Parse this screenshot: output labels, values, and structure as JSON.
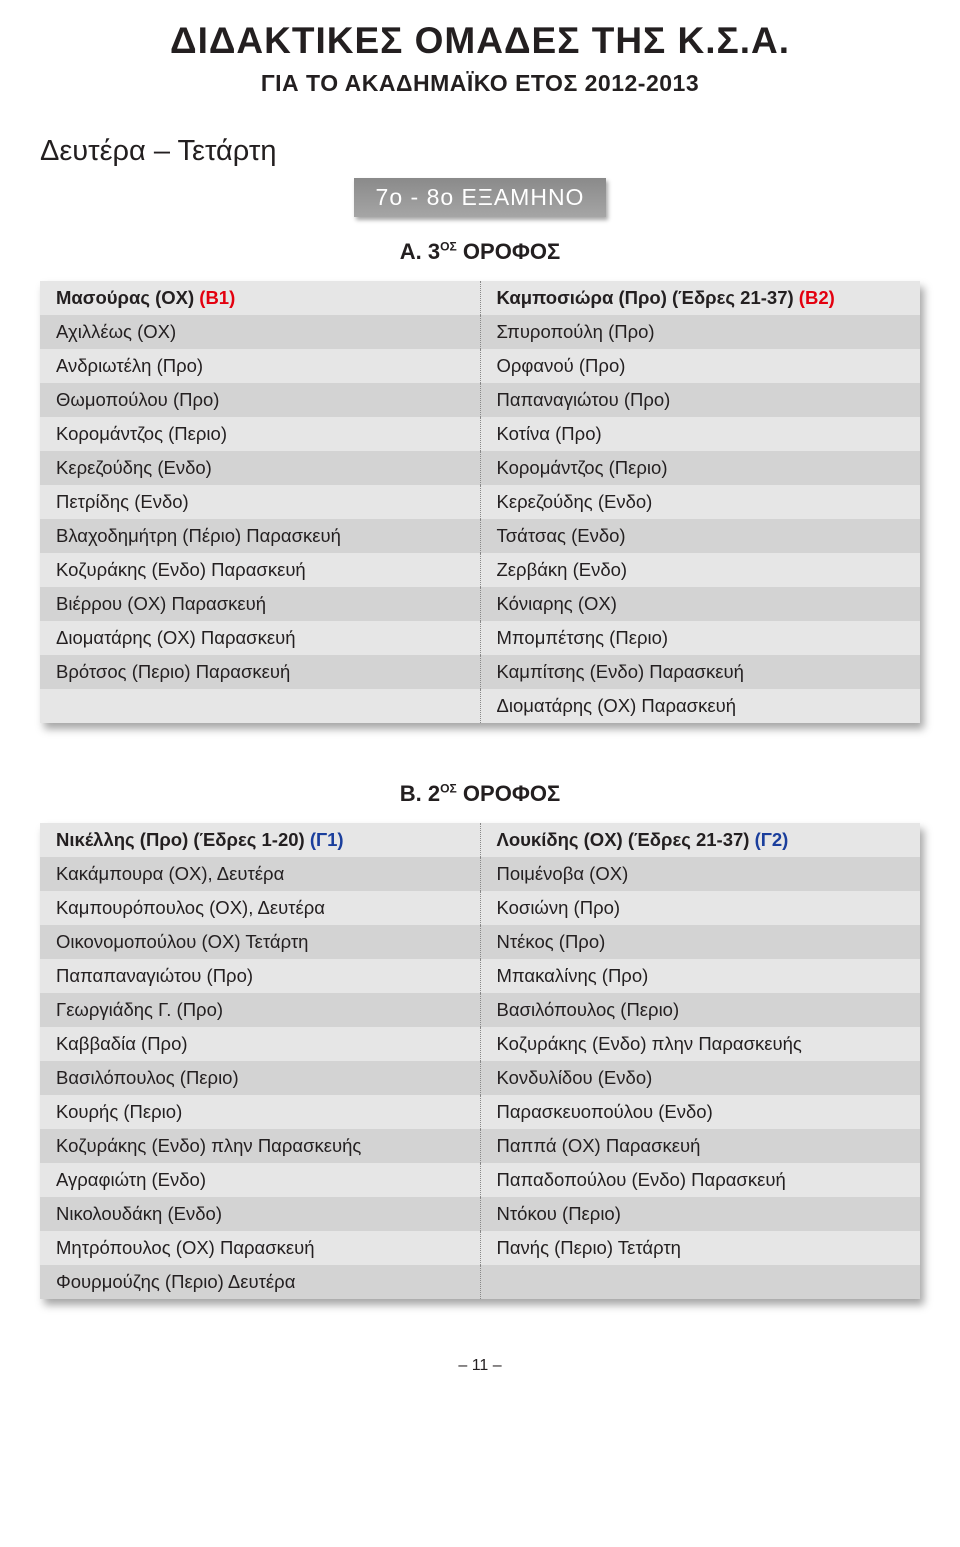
{
  "title": "ΔΙΔΑΚΤΙΚΕΣ ΟΜΑΔΕΣ ΤΗΣ Κ.Σ.Α.",
  "subtitle": "ΓΙΑ ΤΟ ΑΚΑΔΗΜΑΪΚΟ ΕΤΟΣ 2012-2013",
  "day_heading": "Δευτέρα – Τετάρτη",
  "banner": "7ο - 8ο ΕΞΑΜΗΝΟ",
  "floorA": {
    "prefix": "Α. 3",
    "sup": "ΟΣ",
    "suffix": " ΟΡΟΦΟΣ"
  },
  "floorB": {
    "prefix": "Β. 2",
    "sup": "ΟΣ",
    "suffix": " ΟΡΟΦΟΣ"
  },
  "tableA": {
    "left_header": {
      "text": "Μασούρας (ΟΧ) ",
      "tag": "(Β1)"
    },
    "right_header": {
      "text": "Καμποσιώρα (Προ) (Έδρες 21-37) ",
      "tag": "(Β2)"
    },
    "rows": [
      [
        "Αχιλλέως (ΟΧ)",
        "Σπυροπούλη (Προ)"
      ],
      [
        "Ανδριωτέλη (Προ)",
        "Ορφανού (Προ)"
      ],
      [
        "Θωμοπούλου (Προ)",
        "Παπαναγιώτου (Προ)"
      ],
      [
        "Κορομάντζος (Περιο)",
        "Κοτίνα (Προ)"
      ],
      [
        "Κερεζούδης (Ενδο)",
        "Κορομάντζος (Περιο)"
      ],
      [
        "Πετρίδης (Ενδο)",
        "Κερεζούδης (Ενδο)"
      ],
      [
        "Βλαχοδημήτρη (Πέριο) Παρασκευή",
        "Τσάτσας (Ενδο)"
      ],
      [
        "Κοζυράκης (Ενδο) Παρασκευή",
        "Ζερβάκη (Ενδο)"
      ],
      [
        "Βιέρρου (ΟΧ) Παρασκευή",
        "Κόνιαρης (ΟΧ)"
      ],
      [
        "Διοματάρης (ΟΧ) Παρασκευή",
        "Μπομπέτσης (Περιο)"
      ],
      [
        "Βρότσος (Περιο) Παρασκευή",
        "Καμπίτσης (Ενδο) Παρασκευή"
      ],
      [
        "",
        "Διοματάρης (ΟΧ) Παρασκευή"
      ]
    ]
  },
  "tableB": {
    "left_header": {
      "text": "Νικέλλης (Προ) (Έδρες 1-20) ",
      "tag": "(Γ1)"
    },
    "right_header": {
      "text": "Λουκίδης (ΟΧ) (Έδρες 21-37) ",
      "tag": "(Γ2)"
    },
    "rows": [
      [
        "Κακάμπουρα (ΟΧ), Δευτέρα",
        "Ποιμένοβα (ΟΧ)"
      ],
      [
        "Καμπουρόπουλος (ΟΧ), Δευτέρα",
        "Κοσιώνη (Προ)"
      ],
      [
        "Οικονομοπούλου (ΟΧ)  Τετάρτη",
        "Ντέκος (Προ)"
      ],
      [
        "Παπαπαναγιώτου (Προ)",
        "Μπακαλίνης (Προ)"
      ],
      [
        "Γεωργιάδης Γ. (Προ)",
        "Βασιλόπουλος (Περιο)"
      ],
      [
        "Καββαδία (Προ)",
        "Κοζυράκης (Ενδο) πλην Παρασκευής"
      ],
      [
        "Βασιλόπουλος (Περιο)",
        "Κονδυλίδου (Ενδο)"
      ],
      [
        "Κουρής (Περιο)",
        "Παρασκευοπούλου (Ενδο)"
      ],
      [
        "Κοζυράκης (Ενδο) πλην Παρασκευής",
        "Παππά (ΟΧ) Παρασκευή"
      ],
      [
        "Αγραφιώτη (Ενδο)",
        "Παπαδοπούλου (Ενδο) Παρασκευή"
      ],
      [
        "Νικολουδάκη (Ενδο)",
        "Ντόκου (Περιο)"
      ],
      [
        "Μητρόπουλος (ΟΧ) Παρασκευή",
        "Πανής (Περιο) Τετάρτη"
      ],
      [
        "Φουρμούζης (Περιο) Δευτέρα",
        ""
      ]
    ]
  },
  "page_number": "– 11 –",
  "colors": {
    "text": "#231f20",
    "red": "#e3000f",
    "blue": "#1a3e9c",
    "row_odd": "#e6e6e6",
    "row_even": "#d3d3d3",
    "banner_bg": "#8a8a8a"
  }
}
